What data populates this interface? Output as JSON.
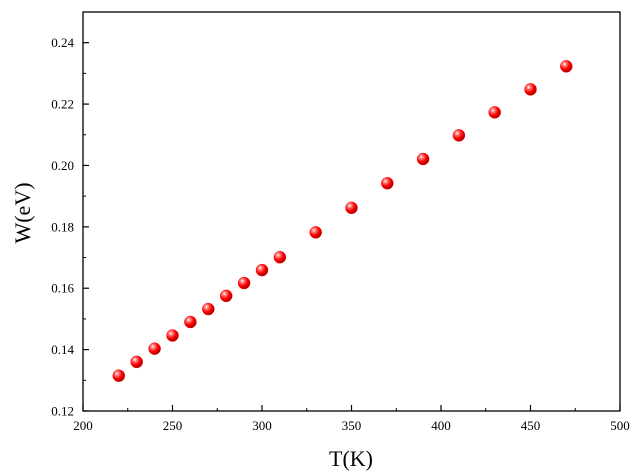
{
  "chart_data": {
    "type": "scatter",
    "title": "",
    "xlabel": "T(K)",
    "ylabel": "W(eV)",
    "xlim": [
      200,
      500
    ],
    "ylim": [
      0.12,
      0.25
    ],
    "x_ticks": [
      "200",
      "250",
      "300",
      "350",
      "400",
      "450",
      "500"
    ],
    "y_ticks": [
      "0.12",
      "0.14",
      "0.16",
      "0.18",
      "0.20",
      "0.22",
      "0.24"
    ],
    "grid": false,
    "legend": "none",
    "marker_color": "#ff0000",
    "series": [
      {
        "x": [
          220,
          230,
          240,
          250,
          260,
          270,
          280,
          290,
          300,
          310,
          330,
          350,
          370,
          390,
          410,
          430,
          450,
          470
        ],
        "y": [
          0.1315,
          0.136,
          0.1403,
          0.1446,
          0.149,
          0.1532,
          0.1575,
          0.1617,
          0.1659,
          0.1701,
          0.1782,
          0.1862,
          0.1942,
          0.2021,
          0.2098,
          0.2173,
          0.2248,
          0.2323
        ]
      }
    ]
  }
}
